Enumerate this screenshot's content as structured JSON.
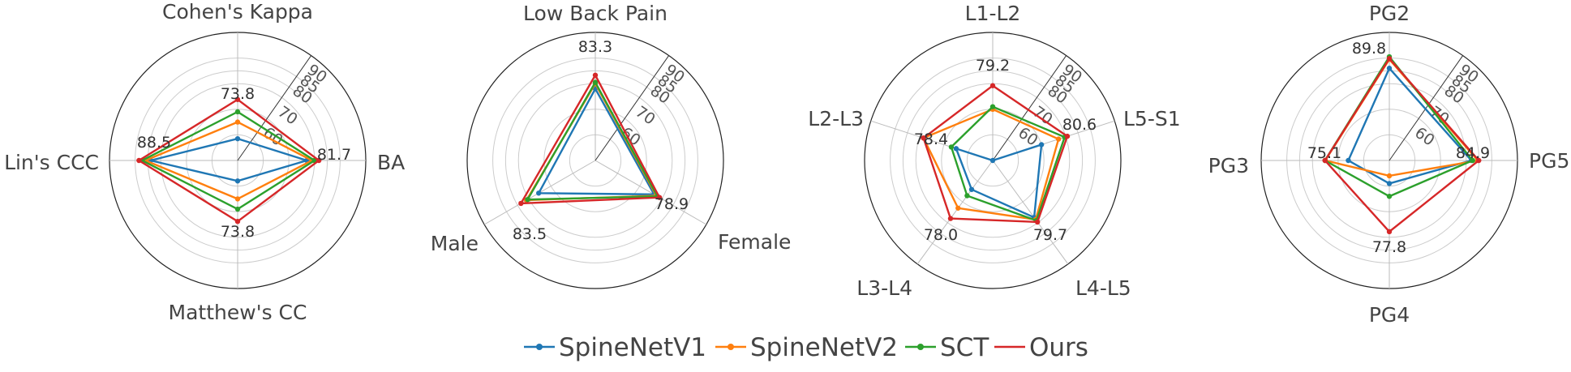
{
  "legend": [
    {
      "name": "SpineNetV1",
      "color": "#1f77b4"
    },
    {
      "name": "SpineNetV2",
      "color": "#ff7f0e"
    },
    {
      "name": "SCT",
      "color": "#2ca02c"
    },
    {
      "name": "Ours",
      "color": "#d62728"
    }
  ],
  "chart_data": [
    {
      "type": "radar",
      "rmin": 50,
      "rmax": 100,
      "rticks": [
        60,
        70,
        80,
        85,
        90
      ],
      "axes": [
        "BA",
        "Cohen's Kappa",
        "Lin's CCC",
        "Matthew's CC"
      ],
      "series": [
        {
          "name": "SpineNetV1",
          "values": [
            77.0,
            58.5,
            84.0,
            58.0
          ]
        },
        {
          "name": "SpineNetV2",
          "values": [
            79.0,
            65.0,
            86.0,
            65.0
          ]
        },
        {
          "name": "SCT",
          "values": [
            80.0,
            69.0,
            87.3,
            69.0
          ]
        },
        {
          "name": "Ours",
          "values": [
            81.7,
            73.8,
            88.5,
            73.8
          ]
        }
      ],
      "data_labels": [
        {
          "axis": 0,
          "text": "81.7"
        },
        {
          "axis": 1,
          "text": "73.8"
        },
        {
          "axis": 2,
          "text": "88.5"
        },
        {
          "axis": 3,
          "text": "73.8"
        }
      ]
    },
    {
      "type": "radar",
      "rmin": 50,
      "rmax": 100,
      "rticks": [
        60,
        70,
        80,
        85,
        90
      ],
      "axes": [
        "Low Back Pain",
        "Male",
        "Female"
      ],
      "series": [
        {
          "name": "SpineNetV1",
          "values": [
            78.0,
            75.5,
            76.5
          ]
        },
        {
          "name": "SpineNetV2",
          "values": [
            80.0,
            81.0,
            77.5
          ]
        },
        {
          "name": "SCT",
          "values": [
            80.5,
            80.5,
            78.0
          ]
        },
        {
          "name": "Ours",
          "values": [
            83.3,
            83.5,
            78.9
          ]
        }
      ],
      "data_labels": [
        {
          "axis": 0,
          "text": "83.3"
        },
        {
          "axis": 1,
          "text": "83.5"
        },
        {
          "axis": 2,
          "text": "78.9"
        }
      ]
    },
    {
      "type": "radar",
      "rmin": 50,
      "rmax": 100,
      "rticks": [
        60,
        70,
        80,
        85,
        90
      ],
      "axes": [
        "L1-L2",
        "L2-L3",
        "L3-L4",
        "L4-L5",
        "L5-S1"
      ],
      "series": [
        {
          "name": "SpineNetV1",
          "values": [
            50.0,
            65.0,
            64.0,
            77.5,
            70.0
          ]
        },
        {
          "name": "SpineNetV2",
          "values": [
            70.0,
            78.4,
            73.0,
            78.5,
            77.0
          ]
        },
        {
          "name": "SCT",
          "values": [
            71.0,
            67.0,
            67.0,
            79.0,
            79.5
          ]
        },
        {
          "name": "Ours",
          "values": [
            79.2,
            78.4,
            78.0,
            79.7,
            80.6
          ]
        }
      ],
      "data_labels": [
        {
          "axis": 0,
          "text": "79.2"
        },
        {
          "axis": 1,
          "text": "78.4"
        },
        {
          "axis": 2,
          "text": "78.0"
        },
        {
          "axis": 3,
          "text": "79.7"
        },
        {
          "axis": 4,
          "text": "80.6"
        }
      ]
    },
    {
      "type": "radar",
      "rmin": 50,
      "rmax": 100,
      "rticks": [
        60,
        70,
        80,
        85,
        90
      ],
      "axes": [
        "PG2",
        "PG3",
        "PG4",
        "PG5"
      ],
      "series": [
        {
          "name": "SpineNetV1",
          "values": [
            86.0,
            66.0,
            59.0,
            82.0
          ]
        },
        {
          "name": "SpineNetV2",
          "values": [
            89.5,
            75.0,
            56.0,
            84.5
          ]
        },
        {
          "name": "SCT",
          "values": [
            90.5,
            75.1,
            64.0,
            82.5
          ]
        },
        {
          "name": "Ours",
          "values": [
            89.8,
            75.1,
            77.8,
            84.9
          ]
        }
      ],
      "data_labels": [
        {
          "axis": 0,
          "text": "89.8"
        },
        {
          "axis": 1,
          "text": "75.1"
        },
        {
          "axis": 2,
          "text": "77.8"
        },
        {
          "axis": 3,
          "text": "84.9"
        }
      ]
    }
  ]
}
